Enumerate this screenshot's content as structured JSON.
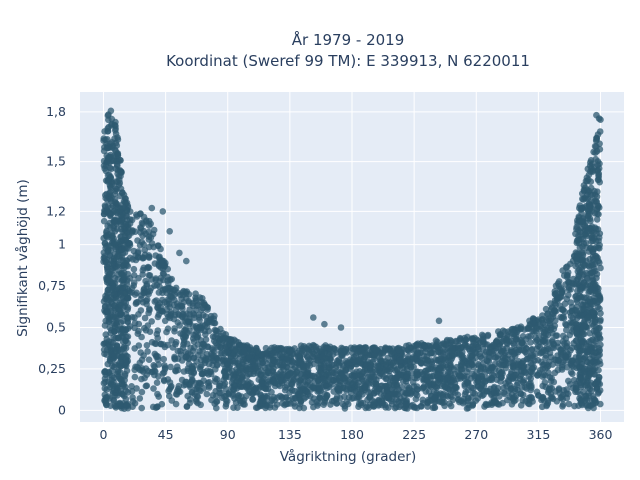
{
  "chart_data": {
    "type": "scatter",
    "title_line1": "År 1979 - 2019",
    "title_line2": "Koordinat (Sweref 99 TM): E 339913, N 6220011",
    "xlabel": "Vågriktning (grader)",
    "ylabel": "Signifikant våghöjd (m)",
    "xlim": [
      -17,
      377
    ],
    "ylim": [
      -0.07,
      1.92
    ],
    "x_ticks": [
      0,
      45,
      90,
      135,
      180,
      225,
      270,
      315,
      360
    ],
    "x_tick_labels": [
      "0",
      "45",
      "90",
      "135",
      "180",
      "225",
      "270",
      "315",
      "360"
    ],
    "y_ticks": [
      0,
      0.25,
      0.5,
      0.75,
      1,
      1.2,
      1.5,
      1.8
    ],
    "y_tick_labels": [
      "0",
      "0,25",
      "0,5",
      "0,75",
      "1",
      "1,2",
      "1,5",
      "1,8"
    ],
    "grid": true,
    "colors": {
      "marker": "#2e5a70",
      "plot_bg": "#e5ecf6",
      "grid": "#ffffff",
      "text": "#2a3f5f"
    },
    "envelope": [
      [
        0,
        1.65
      ],
      [
        5,
        1.85
      ],
      [
        10,
        1.7
      ],
      [
        15,
        1.3
      ],
      [
        20,
        1.2
      ],
      [
        30,
        1.22
      ],
      [
        40,
        1.05
      ],
      [
        45,
        0.9
      ],
      [
        50,
        0.78
      ],
      [
        60,
        0.72
      ],
      [
        70,
        0.7
      ],
      [
        80,
        0.58
      ],
      [
        85,
        0.5
      ],
      [
        90,
        0.45
      ],
      [
        100,
        0.4
      ],
      [
        120,
        0.38
      ],
      [
        135,
        0.38
      ],
      [
        150,
        0.4
      ],
      [
        180,
        0.38
      ],
      [
        210,
        0.38
      ],
      [
        240,
        0.42
      ],
      [
        270,
        0.45
      ],
      [
        300,
        0.5
      ],
      [
        320,
        0.6
      ],
      [
        330,
        0.8
      ],
      [
        340,
        1.0
      ],
      [
        345,
        1.25
      ],
      [
        350,
        1.45
      ],
      [
        355,
        1.6
      ],
      [
        360,
        1.78
      ]
    ],
    "outliers": [
      [
        35,
        1.22
      ],
      [
        43,
        1.2
      ],
      [
        48,
        1.08
      ],
      [
        55,
        0.95
      ],
      [
        60,
        0.9
      ],
      [
        152,
        0.56
      ],
      [
        160,
        0.52
      ],
      [
        172,
        0.5
      ],
      [
        243,
        0.54
      ],
      [
        300,
        0.5
      ],
      [
        318,
        0.55
      ],
      [
        325,
        0.62
      ],
      [
        330,
        0.75
      ],
      [
        357,
        1.78
      ],
      [
        359,
        1.76
      ]
    ]
  }
}
